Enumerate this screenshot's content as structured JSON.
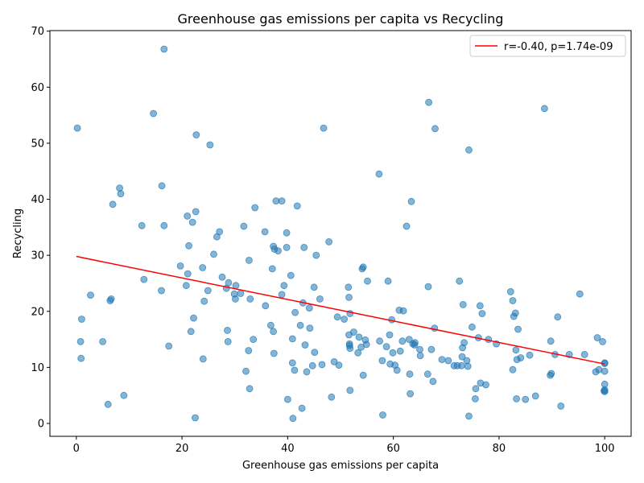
{
  "chart_data": {
    "type": "scatter",
    "title": "Greenhouse gas emissions per capita vs Recycling",
    "xlabel": "Greenhouse gas emissions per capita",
    "ylabel": "Recycling",
    "xlim": [
      -5,
      105
    ],
    "ylim": [
      -2.3,
      70.1
    ],
    "xticks": [
      0,
      20,
      40,
      60,
      80,
      100
    ],
    "yticks": [
      0,
      10,
      20,
      30,
      40,
      50,
      60,
      70
    ],
    "grid": false,
    "legend_position": "top-right",
    "point_color": "#1f77b4",
    "line_color": "#ff0000",
    "trend_label": "r=-0.40, p=1.74e-09",
    "trend_line": {
      "x": [
        0,
        100
      ],
      "y": [
        29.8,
        10.6
      ]
    },
    "points": [
      [
        0.2,
        52.7
      ],
      [
        0.8,
        14.6
      ],
      [
        0.9,
        11.6
      ],
      [
        1,
        18.6
      ],
      [
        2.7,
        22.9
      ],
      [
        5,
        14.6
      ],
      [
        6,
        3.4
      ],
      [
        6.4,
        21.9
      ],
      [
        6.6,
        22.2
      ],
      [
        6.9,
        39.1
      ],
      [
        8.2,
        42
      ],
      [
        8.4,
        41
      ],
      [
        9,
        5
      ],
      [
        12.4,
        35.3
      ],
      [
        12.8,
        25.7
      ],
      [
        14.6,
        55.3
      ],
      [
        16.1,
        23.7
      ],
      [
        16.2,
        42.4
      ],
      [
        16.6,
        66.8
      ],
      [
        16.6,
        35.3
      ],
      [
        17.5,
        13.8
      ],
      [
        19.7,
        28.1
      ],
      [
        20.8,
        24.6
      ],
      [
        21,
        37
      ],
      [
        21.1,
        26.7
      ],
      [
        21.3,
        31.7
      ],
      [
        21.7,
        16.4
      ],
      [
        22,
        35.9
      ],
      [
        22.2,
        18.8
      ],
      [
        22.5,
        1
      ],
      [
        22.6,
        37.8
      ],
      [
        22.7,
        51.5
      ],
      [
        23.9,
        27.8
      ],
      [
        24,
        11.5
      ],
      [
        24.2,
        21.8
      ],
      [
        24.9,
        23.7
      ],
      [
        25.3,
        49.7
      ],
      [
        26,
        30.2
      ],
      [
        26.6,
        33.3
      ],
      [
        27.1,
        34.2
      ],
      [
        27.6,
        26.1
      ],
      [
        28.4,
        24.1
      ],
      [
        28.6,
        16.6
      ],
      [
        28.7,
        14.6
      ],
      [
        28.8,
        25.1
      ],
      [
        29.9,
        23.1
      ],
      [
        30.1,
        22.2
      ],
      [
        30.2,
        24.6
      ],
      [
        31.1,
        23.2
      ],
      [
        31.7,
        35.2
      ],
      [
        32.1,
        9.3
      ],
      [
        32.6,
        13
      ],
      [
        32.7,
        29.1
      ],
      [
        32.8,
        6.2
      ],
      [
        32.9,
        22.2
      ],
      [
        33.5,
        15
      ],
      [
        33.8,
        38.5
      ],
      [
        35.7,
        34.2
      ],
      [
        35.8,
        21
      ],
      [
        36.8,
        17.5
      ],
      [
        37.1,
        27.6
      ],
      [
        37.3,
        16.4
      ],
      [
        37.3,
        31.6
      ],
      [
        37.4,
        12.5
      ],
      [
        37.5,
        31.1
      ],
      [
        37.8,
        39.7
      ],
      [
        38.2,
        30.8
      ],
      [
        38.9,
        39.7
      ],
      [
        38.9,
        23
      ],
      [
        39.3,
        24.6
      ],
      [
        39.8,
        34
      ],
      [
        39.8,
        31.4
      ],
      [
        40,
        4.3
      ],
      [
        40.6,
        26.4
      ],
      [
        40.9,
        15.1
      ],
      [
        40.9,
        10.8
      ],
      [
        41,
        0.9
      ],
      [
        41.3,
        9.5
      ],
      [
        41.4,
        19.8
      ],
      [
        41.8,
        38.8
      ],
      [
        42.4,
        17.5
      ],
      [
        42.7,
        2.7
      ],
      [
        42.9,
        21.5
      ],
      [
        43.1,
        31.4
      ],
      [
        43.3,
        14
      ],
      [
        43.6,
        9.2
      ],
      [
        44.1,
        20.6
      ],
      [
        44.2,
        17
      ],
      [
        44.7,
        10.3
      ],
      [
        45,
        24.3
      ],
      [
        45.1,
        12.7
      ],
      [
        45.4,
        30
      ],
      [
        46.1,
        22.2
      ],
      [
        46.5,
        10.5
      ],
      [
        46.8,
        52.7
      ],
      [
        47.8,
        32.4
      ],
      [
        48.3,
        4.7
      ],
      [
        48.8,
        11
      ],
      [
        49.4,
        19
      ],
      [
        49.7,
        10.4
      ],
      [
        50.7,
        18.6
      ],
      [
        51.5,
        24.3
      ],
      [
        51.6,
        22.5
      ],
      [
        51.6,
        15.8
      ],
      [
        51.7,
        14.2
      ],
      [
        51.7,
        13.9
      ],
      [
        51.8,
        13.4
      ],
      [
        51.8,
        5.9
      ],
      [
        51.8,
        19.6
      ],
      [
        52.5,
        16.3
      ],
      [
        53.3,
        12.6
      ],
      [
        53.5,
        15.4
      ],
      [
        53.9,
        13.6
      ],
      [
        54.1,
        27.6
      ],
      [
        54.3,
        27.9
      ],
      [
        54.3,
        8.6
      ],
      [
        54.7,
        14.9
      ],
      [
        54.9,
        14.1
      ],
      [
        55.1,
        25.4
      ],
      [
        57.3,
        44.5
      ],
      [
        57.4,
        14.7
      ],
      [
        57.9,
        11.2
      ],
      [
        58,
        1.5
      ],
      [
        58.7,
        13.7
      ],
      [
        59,
        25.4
      ],
      [
        59.3,
        15.8
      ],
      [
        59.4,
        10.6
      ],
      [
        59.7,
        18.5
      ],
      [
        59.9,
        12.6
      ],
      [
        60.3,
        10.4
      ],
      [
        60.7,
        9.5
      ],
      [
        61.1,
        20.2
      ],
      [
        61.3,
        12.9
      ],
      [
        61.7,
        14.7
      ],
      [
        61.9,
        20.1
      ],
      [
        62.5,
        35.2
      ],
      [
        63,
        15
      ],
      [
        63.1,
        8.8
      ],
      [
        63.2,
        5.3
      ],
      [
        63.4,
        39.6
      ],
      [
        63.7,
        14.2
      ],
      [
        64,
        14
      ],
      [
        64.1,
        14.4
      ],
      [
        65,
        13.2
      ],
      [
        65.1,
        12.1
      ],
      [
        66.5,
        8.8
      ],
      [
        66.6,
        24.4
      ],
      [
        66.7,
        57.3
      ],
      [
        67.2,
        13.2
      ],
      [
        67.5,
        7.5
      ],
      [
        67.8,
        17
      ],
      [
        67.9,
        52.6
      ],
      [
        69.2,
        11.4
      ],
      [
        70.4,
        11.2
      ],
      [
        71.5,
        10.3
      ],
      [
        72.1,
        10.3
      ],
      [
        72.5,
        25.4
      ],
      [
        72.9,
        10.3
      ],
      [
        73,
        11.9
      ],
      [
        73.1,
        13.5
      ],
      [
        73.2,
        21.2
      ],
      [
        73.4,
        14.4
      ],
      [
        73.9,
        11.2
      ],
      [
        74.1,
        10.2
      ],
      [
        74.3,
        48.8
      ],
      [
        74.3,
        1.3
      ],
      [
        74.9,
        17.2
      ],
      [
        75.5,
        4.4
      ],
      [
        75.6,
        6.2
      ],
      [
        76.1,
        15.3
      ],
      [
        76.4,
        21
      ],
      [
        76.5,
        7.2
      ],
      [
        76.8,
        19.6
      ],
      [
        77.5,
        6.9
      ],
      [
        78,
        15
      ],
      [
        79.5,
        14.2
      ],
      [
        82.2,
        23.5
      ],
      [
        82.6,
        9.6
      ],
      [
        82.6,
        21.9
      ],
      [
        82.8,
        19.1
      ],
      [
        83.1,
        19.7
      ],
      [
        83.2,
        13.1
      ],
      [
        83.3,
        4.4
      ],
      [
        83.4,
        11.4
      ],
      [
        83.6,
        16.8
      ],
      [
        84.1,
        11.7
      ],
      [
        85,
        4.3
      ],
      [
        85.8,
        12.2
      ],
      [
        86.9,
        4.9
      ],
      [
        88.6,
        56.2
      ],
      [
        89.7,
        8.6
      ],
      [
        89.8,
        14.7
      ],
      [
        89.9,
        8.9
      ],
      [
        90.6,
        12.3
      ],
      [
        91.1,
        19
      ],
      [
        91.7,
        3.1
      ],
      [
        93.3,
        12.3
      ],
      [
        95.3,
        23.1
      ],
      [
        96.2,
        12.3
      ],
      [
        98.3,
        9.2
      ],
      [
        98.6,
        15.3
      ],
      [
        98.9,
        9.6
      ],
      [
        99.6,
        14.6
      ],
      [
        100,
        10.8
      ],
      [
        100,
        10.7
      ],
      [
        100,
        9.3
      ],
      [
        100,
        7
      ],
      [
        100,
        6
      ],
      [
        100,
        5.7
      ],
      [
        99.9,
        5.8
      ]
    ]
  }
}
